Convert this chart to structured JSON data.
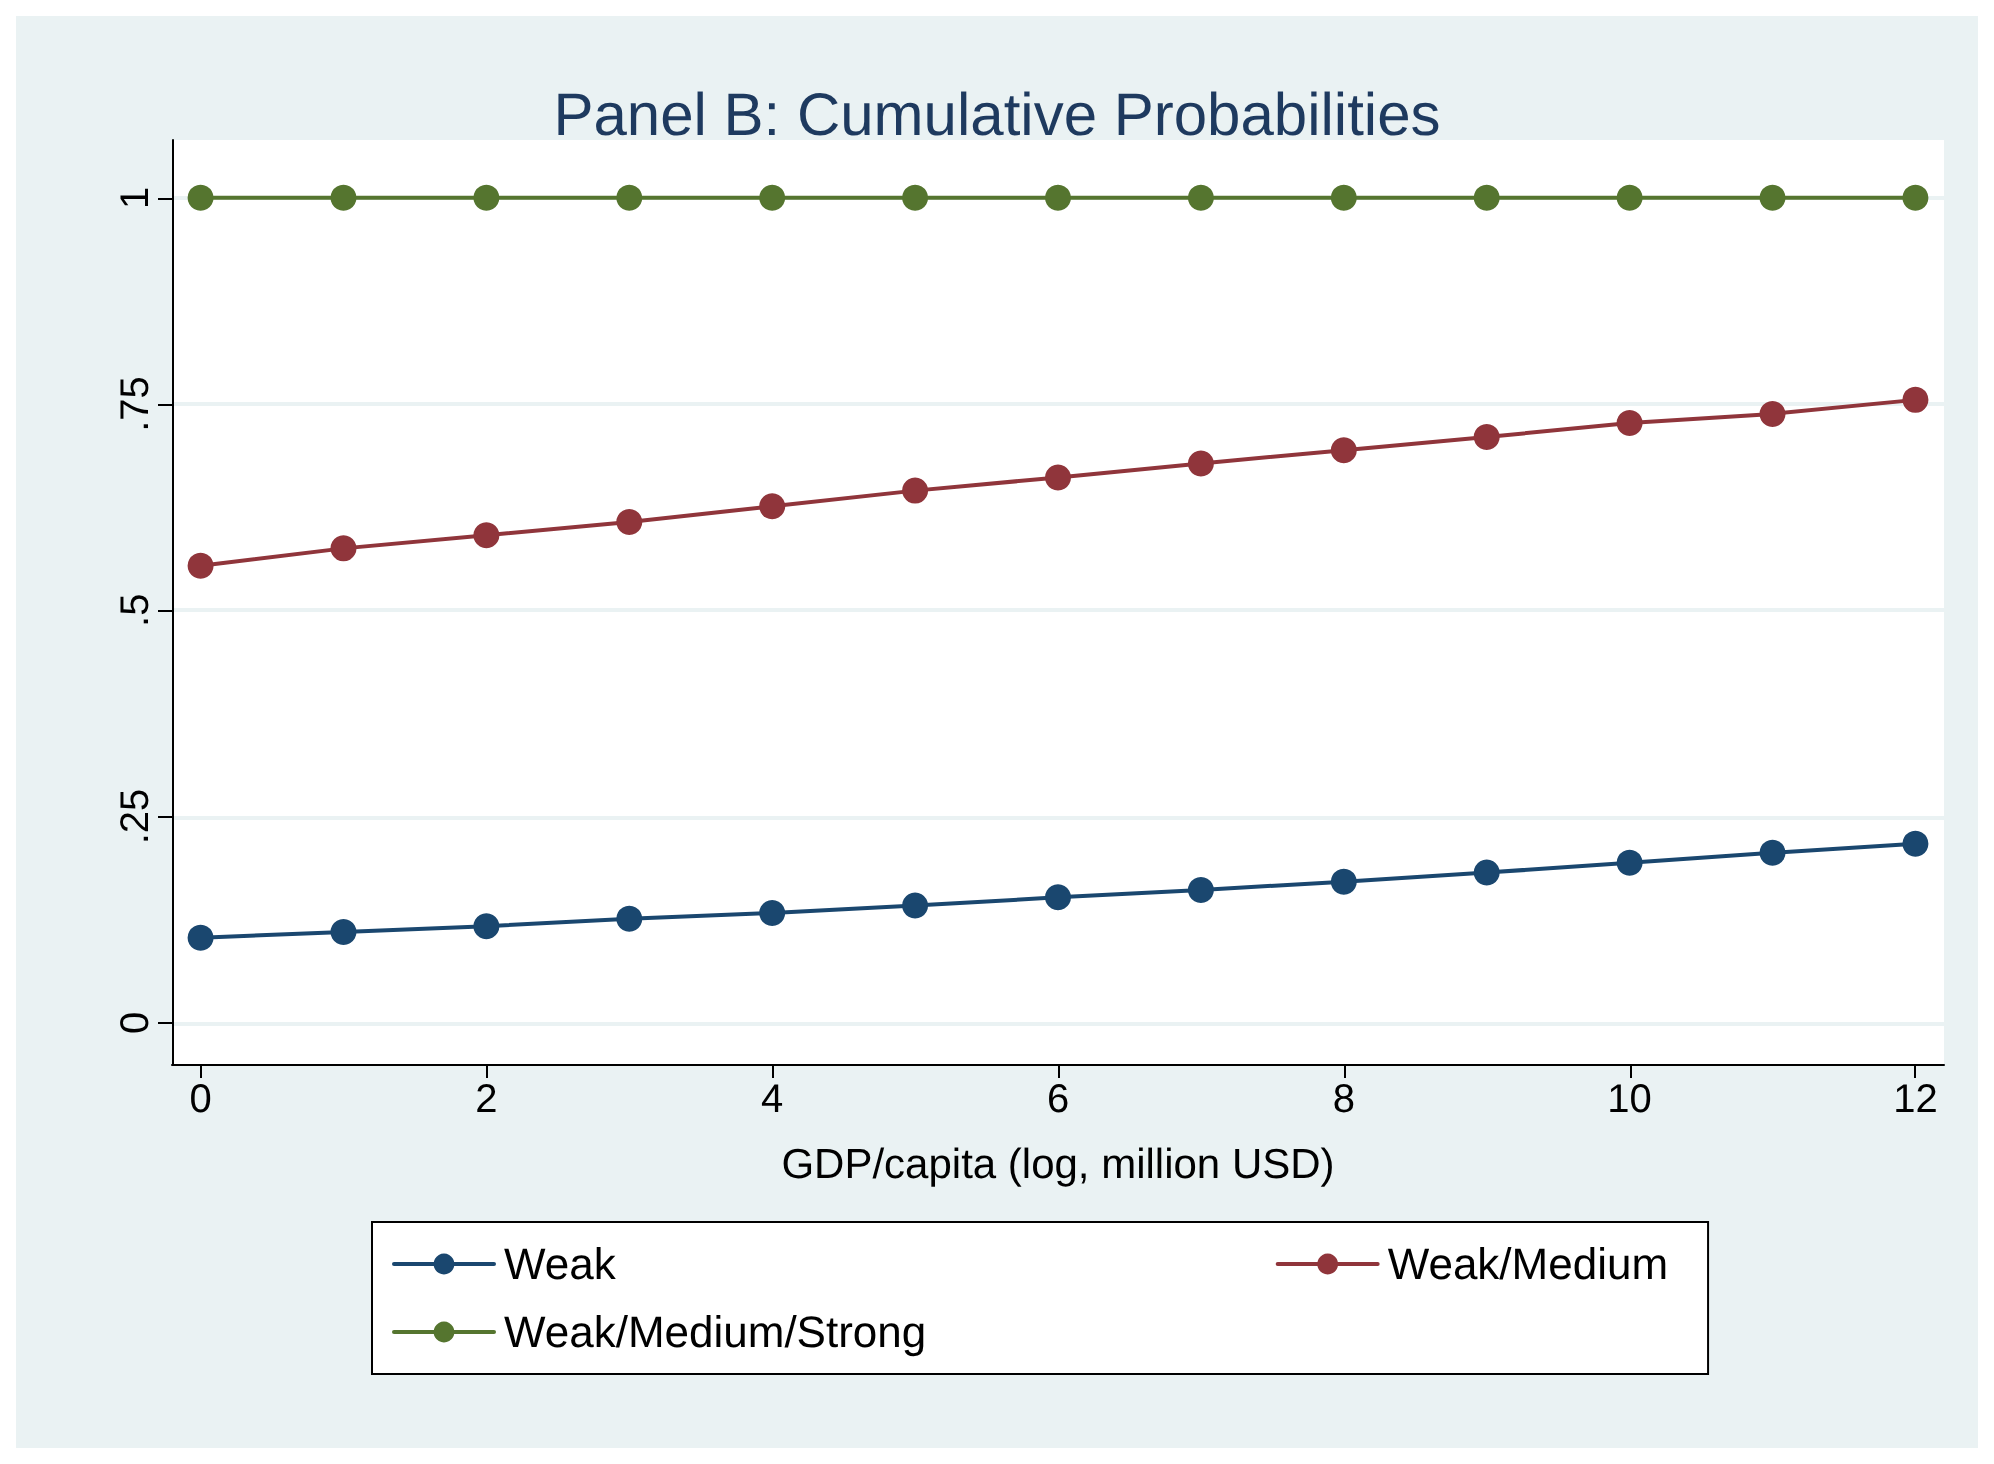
{
  "chart_data": {
    "type": "line",
    "title": "Panel B: Cumulative Probabilities",
    "xlabel": "GDP/capita (log, million USD)",
    "x": [
      0,
      1,
      2,
      3,
      4,
      5,
      6,
      7,
      8,
      9,
      10,
      11,
      12
    ],
    "series": [
      {
        "name": "Weak",
        "color": "#1a476f",
        "values": [
          0.103,
          0.11,
          0.117,
          0.126,
          0.133,
          0.142,
          0.152,
          0.161,
          0.171,
          0.182,
          0.194,
          0.206,
          0.217
        ]
      },
      {
        "name": "Weak/Medium",
        "color": "#90353b",
        "values": [
          0.554,
          0.575,
          0.591,
          0.607,
          0.626,
          0.645,
          0.661,
          0.678,
          0.694,
          0.71,
          0.727,
          0.738,
          0.755
        ]
      },
      {
        "name": "Weak/Medium/Strong",
        "color": "#55752f",
        "values": [
          1,
          1,
          1,
          1,
          1,
          1,
          1,
          1,
          1,
          1,
          1,
          1,
          1
        ]
      }
    ],
    "xlim": [
      -0.2,
      12.2
    ],
    "xticks": [
      0,
      2,
      4,
      6,
      8,
      10,
      12
    ],
    "ylim": [
      -0.05,
      1.07
    ],
    "yticks": [
      0,
      {
        "value": 0.25,
        "label": ".25"
      },
      {
        "value": 0.5,
        "label": ".5"
      },
      {
        "value": 0.75,
        "label": ".75"
      },
      1
    ],
    "grid": "y",
    "legend": "bottom",
    "marker": "circle",
    "line_style": "solid"
  }
}
